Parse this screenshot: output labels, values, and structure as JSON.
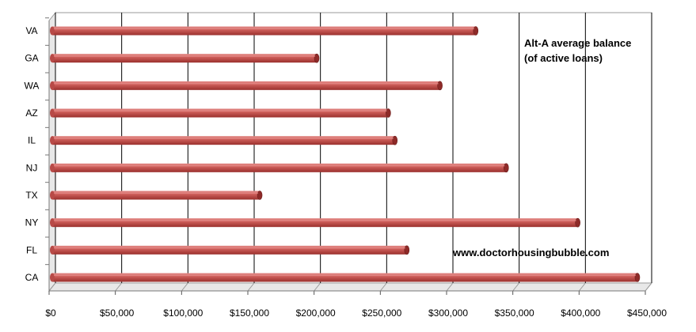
{
  "chart_data": {
    "type": "bar",
    "orientation": "horizontal",
    "categories": [
      "VA",
      "GA",
      "WA",
      "AZ",
      "IL",
      "NJ",
      "TX",
      "NY",
      "FL",
      "CA"
    ],
    "values": [
      322000,
      202000,
      295000,
      256000,
      261000,
      345000,
      159000,
      399000,
      270000,
      444000
    ],
    "title": "",
    "xlabel": "",
    "ylabel": "",
    "xlim": [
      0,
      450000
    ],
    "x_ticks": [
      "$0",
      "$50,000",
      "$100,000",
      "$150,000",
      "$200,000",
      "$250,000",
      "$300,000",
      "$350,000",
      "$400,000",
      "$450,000"
    ],
    "grid": true,
    "legend": "none",
    "annotations": [
      {
        "text": "Alt-A average balance",
        "placement": "top-right"
      },
      {
        "text": "(of active loans)",
        "placement": "top-right"
      },
      {
        "text": "www.doctorhousingbubble.com",
        "placement": "bottom-right"
      }
    ],
    "colors": {
      "bar": "#c0504d",
      "bar_dark": "#8e2a28",
      "bar_light": "#e58f8c",
      "grid": "#000000",
      "wall": "#e8e8e8"
    }
  }
}
